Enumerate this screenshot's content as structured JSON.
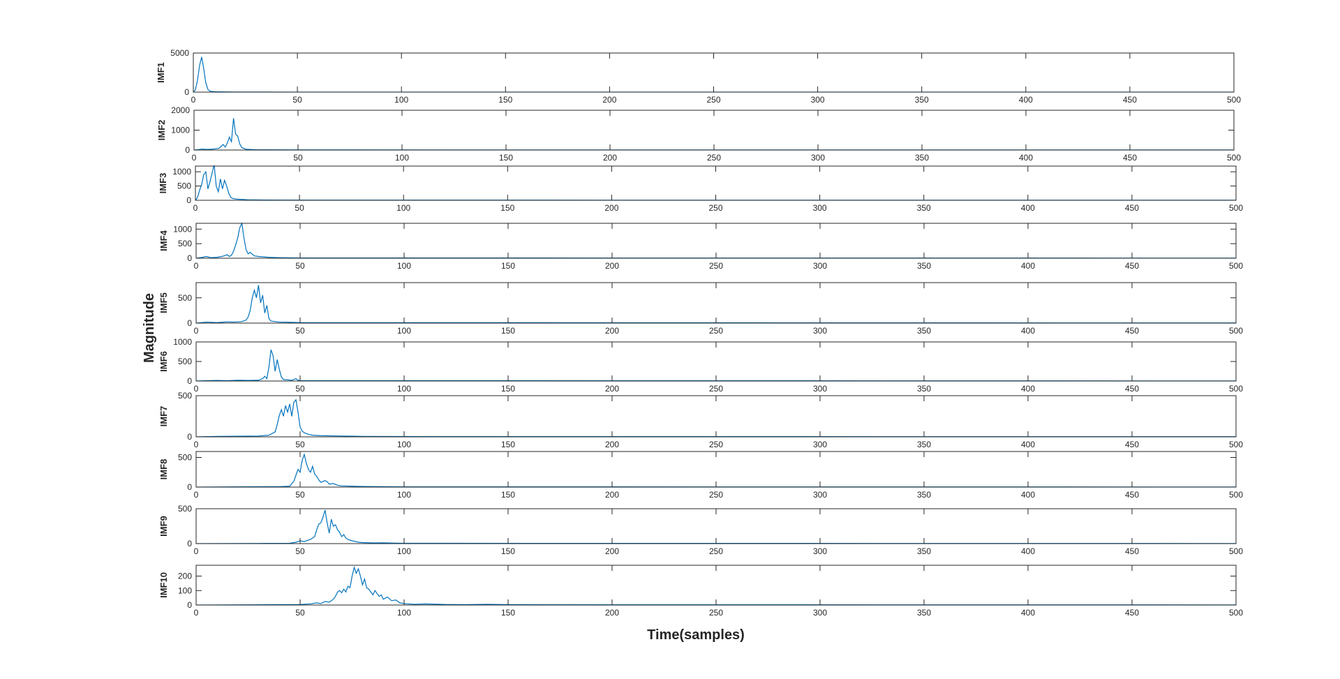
{
  "chart_data": {
    "type": "line",
    "xlabel": "Time(samples)",
    "ylabel": "Magnitude",
    "series_color": "#0072BD",
    "xlim": [
      0,
      500
    ],
    "xticks": [
      0,
      50,
      100,
      150,
      200,
      250,
      300,
      350,
      400,
      450,
      500
    ],
    "panels": [
      {
        "name": "IMF1",
        "ylim": [
          0,
          5000
        ],
        "yticks": [
          0,
          5000
        ],
        "points": [
          [
            0,
            0
          ],
          [
            1,
            300
          ],
          [
            2,
            1500
          ],
          [
            3,
            3400
          ],
          [
            4,
            4500
          ],
          [
            5,
            3000
          ],
          [
            6,
            1200
          ],
          [
            7,
            350
          ],
          [
            8,
            120
          ],
          [
            10,
            60
          ],
          [
            14,
            30
          ],
          [
            20,
            15
          ],
          [
            30,
            10
          ],
          [
            50,
            6
          ],
          [
            500,
            3
          ]
        ]
      },
      {
        "name": "IMF2",
        "ylim": [
          0,
          2000
        ],
        "yticks": [
          0,
          1000,
          2000
        ],
        "points": [
          [
            0,
            0
          ],
          [
            2,
            20
          ],
          [
            4,
            50
          ],
          [
            6,
            30
          ],
          [
            8,
            40
          ],
          [
            10,
            60
          ],
          [
            12,
            90
          ],
          [
            13,
            180
          ],
          [
            14,
            280
          ],
          [
            15,
            150
          ],
          [
            16,
            350
          ],
          [
            17,
            650
          ],
          [
            18,
            420
          ],
          [
            19,
            1600
          ],
          [
            20,
            800
          ],
          [
            21,
            700
          ],
          [
            22,
            300
          ],
          [
            23,
            120
          ],
          [
            25,
            40
          ],
          [
            30,
            15
          ],
          [
            50,
            8
          ],
          [
            500,
            3
          ]
        ]
      },
      {
        "name": "IMF3",
        "ylim": [
          0,
          1200
        ],
        "yticks": [
          0,
          500,
          1000
        ],
        "points": [
          [
            0,
            0
          ],
          [
            1,
            100
          ],
          [
            2,
            350
          ],
          [
            3,
            550
          ],
          [
            4,
            900
          ],
          [
            5,
            1000
          ],
          [
            6,
            400
          ],
          [
            7,
            650
          ],
          [
            8,
            950
          ],
          [
            9,
            1250
          ],
          [
            10,
            500
          ],
          [
            11,
            300
          ],
          [
            12,
            750
          ],
          [
            13,
            400
          ],
          [
            14,
            700
          ],
          [
            15,
            500
          ],
          [
            16,
            250
          ],
          [
            17,
            100
          ],
          [
            18,
            60
          ],
          [
            20,
            40
          ],
          [
            25,
            20
          ],
          [
            30,
            12
          ],
          [
            50,
            6
          ],
          [
            500,
            3
          ]
        ]
      },
      {
        "name": "IMF4",
        "ylim": [
          0,
          1200
        ],
        "yticks": [
          0,
          500,
          1000
        ],
        "points": [
          [
            0,
            0
          ],
          [
            3,
            30
          ],
          [
            5,
            60
          ],
          [
            7,
            20
          ],
          [
            10,
            30
          ],
          [
            13,
            70
          ],
          [
            15,
            120
          ],
          [
            16,
            60
          ],
          [
            17,
            100
          ],
          [
            18,
            240
          ],
          [
            19,
            450
          ],
          [
            20,
            700
          ],
          [
            21,
            1050
          ],
          [
            22,
            1200
          ],
          [
            23,
            700
          ],
          [
            24,
            300
          ],
          [
            25,
            150
          ],
          [
            26,
            200
          ],
          [
            27,
            140
          ],
          [
            28,
            80
          ],
          [
            30,
            60
          ],
          [
            35,
            30
          ],
          [
            40,
            20
          ],
          [
            50,
            10
          ],
          [
            500,
            4
          ]
        ]
      },
      {
        "name": "IMF5",
        "ylim": [
          0,
          800
        ],
        "yticks": [
          0,
          500
        ],
        "points": [
          [
            0,
            0
          ],
          [
            5,
            20
          ],
          [
            10,
            10
          ],
          [
            12,
            15
          ],
          [
            15,
            25
          ],
          [
            18,
            20
          ],
          [
            20,
            25
          ],
          [
            22,
            30
          ],
          [
            24,
            60
          ],
          [
            25,
            120
          ],
          [
            26,
            250
          ],
          [
            27,
            500
          ],
          [
            28,
            650
          ],
          [
            29,
            500
          ],
          [
            30,
            750
          ],
          [
            31,
            400
          ],
          [
            32,
            550
          ],
          [
            33,
            200
          ],
          [
            34,
            350
          ],
          [
            35,
            90
          ],
          [
            36,
            40
          ],
          [
            38,
            30
          ],
          [
            40,
            20
          ],
          [
            45,
            15
          ],
          [
            50,
            10
          ],
          [
            500,
            3
          ]
        ]
      },
      {
        "name": "IMF6",
        "ylim": [
          0,
          1000
        ],
        "yticks": [
          0,
          500,
          1000
        ],
        "points": [
          [
            0,
            0
          ],
          [
            5,
            10
          ],
          [
            10,
            15
          ],
          [
            15,
            10
          ],
          [
            20,
            20
          ],
          [
            25,
            15
          ],
          [
            30,
            20
          ],
          [
            32,
            60
          ],
          [
            33,
            120
          ],
          [
            34,
            60
          ],
          [
            35,
            350
          ],
          [
            36,
            800
          ],
          [
            37,
            650
          ],
          [
            38,
            250
          ],
          [
            39,
            550
          ],
          [
            40,
            300
          ],
          [
            41,
            100
          ],
          [
            42,
            40
          ],
          [
            44,
            30
          ],
          [
            46,
            20
          ],
          [
            48,
            60
          ],
          [
            49,
            20
          ],
          [
            50,
            10
          ],
          [
            500,
            3
          ]
        ]
      },
      {
        "name": "IMF7",
        "ylim": [
          0,
          500
        ],
        "yticks": [
          0,
          500
        ],
        "points": [
          [
            0,
            0
          ],
          [
            10,
            5
          ],
          [
            20,
            8
          ],
          [
            30,
            10
          ],
          [
            35,
            20
          ],
          [
            38,
            60
          ],
          [
            39,
            150
          ],
          [
            40,
            260
          ],
          [
            41,
            330
          ],
          [
            42,
            250
          ],
          [
            43,
            380
          ],
          [
            44,
            300
          ],
          [
            45,
            400
          ],
          [
            46,
            250
          ],
          [
            47,
            420
          ],
          [
            48,
            450
          ],
          [
            49,
            300
          ],
          [
            50,
            120
          ],
          [
            51,
            70
          ],
          [
            52,
            50
          ],
          [
            54,
            30
          ],
          [
            56,
            20
          ],
          [
            60,
            15
          ],
          [
            70,
            10
          ],
          [
            80,
            6
          ],
          [
            100,
            4
          ],
          [
            500,
            2
          ]
        ]
      },
      {
        "name": "IMF8",
        "ylim": [
          0,
          600
        ],
        "yticks": [
          0,
          500
        ],
        "points": [
          [
            0,
            0
          ],
          [
            20,
            5
          ],
          [
            40,
            8
          ],
          [
            45,
            15
          ],
          [
            47,
            100
          ],
          [
            48,
            200
          ],
          [
            49,
            300
          ],
          [
            50,
            250
          ],
          [
            51,
            450
          ],
          [
            52,
            550
          ],
          [
            53,
            400
          ],
          [
            54,
            300
          ],
          [
            55,
            250
          ],
          [
            56,
            350
          ],
          [
            57,
            220
          ],
          [
            58,
            180
          ],
          [
            59,
            120
          ],
          [
            60,
            80
          ],
          [
            62,
            110
          ],
          [
            63,
            90
          ],
          [
            64,
            50
          ],
          [
            66,
            60
          ],
          [
            68,
            30
          ],
          [
            70,
            20
          ],
          [
            75,
            15
          ],
          [
            80,
            10
          ],
          [
            100,
            5
          ],
          [
            500,
            2
          ]
        ]
      },
      {
        "name": "IMF9",
        "ylim": [
          0,
          500
        ],
        "yticks": [
          0,
          500
        ],
        "points": [
          [
            0,
            0
          ],
          [
            30,
            3
          ],
          [
            45,
            5
          ],
          [
            48,
            20
          ],
          [
            50,
            40
          ],
          [
            52,
            30
          ],
          [
            55,
            60
          ],
          [
            57,
            100
          ],
          [
            58,
            200
          ],
          [
            59,
            280
          ],
          [
            60,
            300
          ],
          [
            61,
            380
          ],
          [
            62,
            480
          ],
          [
            63,
            300
          ],
          [
            64,
            150
          ],
          [
            65,
            350
          ],
          [
            66,
            250
          ],
          [
            67,
            270
          ],
          [
            68,
            200
          ],
          [
            69,
            160
          ],
          [
            70,
            100
          ],
          [
            71,
            130
          ],
          [
            72,
            80
          ],
          [
            73,
            60
          ],
          [
            75,
            40
          ],
          [
            78,
            20
          ],
          [
            80,
            15
          ],
          [
            85,
            10
          ],
          [
            90,
            12
          ],
          [
            95,
            8
          ],
          [
            100,
            5
          ],
          [
            500,
            2
          ]
        ]
      },
      {
        "name": "IMF10",
        "ylim": [
          0,
          275
        ],
        "yticks": [
          0,
          100,
          200
        ],
        "points": [
          [
            0,
            0
          ],
          [
            30,
            2
          ],
          [
            50,
            4
          ],
          [
            55,
            8
          ],
          [
            58,
            15
          ],
          [
            60,
            10
          ],
          [
            62,
            25
          ],
          [
            64,
            20
          ],
          [
            66,
            40
          ],
          [
            67,
            60
          ],
          [
            68,
            90
          ],
          [
            69,
            100
          ],
          [
            70,
            85
          ],
          [
            71,
            110
          ],
          [
            72,
            90
          ],
          [
            73,
            130
          ],
          [
            74,
            120
          ],
          [
            75,
            200
          ],
          [
            76,
            260
          ],
          [
            77,
            220
          ],
          [
            78,
            250
          ],
          [
            79,
            200
          ],
          [
            80,
            140
          ],
          [
            81,
            180
          ],
          [
            82,
            120
          ],
          [
            83,
            110
          ],
          [
            84,
            90
          ],
          [
            85,
            70
          ],
          [
            86,
            100
          ],
          [
            87,
            80
          ],
          [
            88,
            60
          ],
          [
            89,
            70
          ],
          [
            90,
            40
          ],
          [
            92,
            55
          ],
          [
            94,
            30
          ],
          [
            96,
            35
          ],
          [
            98,
            15
          ],
          [
            100,
            10
          ],
          [
            105,
            5
          ],
          [
            110,
            8
          ],
          [
            120,
            4
          ],
          [
            130,
            3
          ],
          [
            140,
            5
          ],
          [
            150,
            3
          ],
          [
            200,
            2
          ],
          [
            500,
            1
          ]
        ]
      }
    ]
  }
}
